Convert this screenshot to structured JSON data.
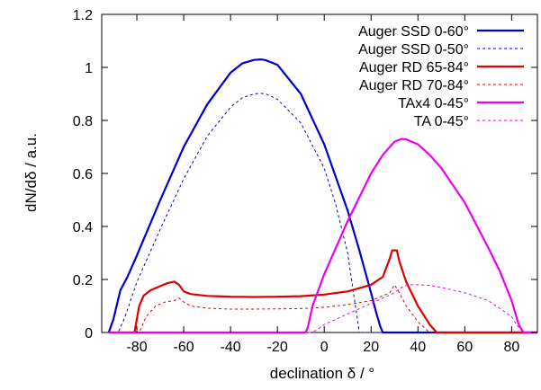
{
  "chart_data": {
    "type": "line",
    "xlabel": "declination δ / °",
    "ylabel": "dN/dδ / a.u.",
    "xlim": [
      -95,
      91
    ],
    "ylim": [
      0,
      1.2
    ],
    "xticks": [
      -80,
      -60,
      -40,
      -20,
      0,
      20,
      40,
      60,
      80
    ],
    "yticks": [
      0,
      0.2,
      0.4,
      0.6,
      0.8,
      1,
      1.2
    ],
    "grid": false,
    "legend_position": "top-right",
    "series": [
      {
        "name": "Auger SSD 0-60°",
        "color": "#0000cc",
        "style": "solid",
        "x": [
          -92,
          -90,
          -87,
          -84,
          -80,
          -70,
          -60,
          -50,
          -40,
          -35,
          -30,
          -27,
          -25,
          -20,
          -10,
          0,
          10,
          15,
          20,
          22,
          24,
          25,
          27,
          91
        ],
        "y": [
          0,
          0.05,
          0.16,
          0.21,
          0.29,
          0.5,
          0.7,
          0.86,
          0.98,
          1.015,
          1.028,
          1.03,
          1.027,
          1.01,
          0.9,
          0.71,
          0.46,
          0.31,
          0.15,
          0.08,
          0.02,
          0,
          0,
          0
        ]
      },
      {
        "name": "Auger SSD 0-50°",
        "color": "#0000cc",
        "style": "dashed",
        "x": [
          -92,
          -88,
          -85,
          -80,
          -70,
          -60,
          -50,
          -40,
          -35,
          -30,
          -27,
          -25,
          -20,
          -10,
          0,
          5,
          10,
          13,
          15,
          91
        ],
        "y": [
          0,
          0,
          0.06,
          0.19,
          0.39,
          0.58,
          0.74,
          0.85,
          0.885,
          0.9,
          0.902,
          0.9,
          0.88,
          0.79,
          0.62,
          0.48,
          0.3,
          0.12,
          0,
          0
        ]
      },
      {
        "name": "Auger RD 65-84°",
        "color": "#e00000",
        "style": "solid",
        "x": [
          -92,
          -81,
          -79,
          -77,
          -74,
          -70,
          -67,
          -64,
          -62,
          -60,
          -57,
          -50,
          -40,
          -30,
          -20,
          -10,
          0,
          10,
          20,
          25,
          28,
          29,
          31,
          32,
          35,
          40,
          45,
          48,
          91
        ],
        "y": [
          0,
          0,
          0.1,
          0.14,
          0.16,
          0.175,
          0.186,
          0.192,
          0.18,
          0.155,
          0.145,
          0.138,
          0.135,
          0.134,
          0.135,
          0.137,
          0.143,
          0.155,
          0.18,
          0.21,
          0.28,
          0.31,
          0.31,
          0.27,
          0.19,
          0.1,
          0.03,
          0,
          0
        ]
      },
      {
        "name": "Auger RD 70-84°",
        "color": "#e00000",
        "style": "dashed",
        "x": [
          -92,
          -79,
          -76,
          -72,
          -68,
          -64,
          -62,
          -60,
          -57,
          -50,
          -40,
          -30,
          -20,
          -10,
          0,
          10,
          20,
          28,
          30,
          32,
          35,
          40,
          45,
          91
        ],
        "y": [
          0,
          0,
          0.06,
          0.1,
          0.115,
          0.12,
          0.13,
          0.115,
          0.1,
          0.092,
          0.088,
          0.088,
          0.089,
          0.09,
          0.095,
          0.105,
          0.12,
          0.15,
          0.18,
          0.15,
          0.1,
          0.04,
          0,
          0
        ]
      },
      {
        "name": "TAx4 0-45°",
        "color": "#ee00ee",
        "style": "solid",
        "x": [
          -92,
          -8,
          -7,
          -5,
          0,
          10,
          20,
          25,
          30,
          33,
          35,
          40,
          45,
          50,
          60,
          70,
          75,
          80,
          83,
          85,
          91
        ],
        "y": [
          0,
          0,
          0.02,
          0.1,
          0.22,
          0.42,
          0.6,
          0.67,
          0.72,
          0.73,
          0.728,
          0.71,
          0.67,
          0.62,
          0.49,
          0.32,
          0.23,
          0.12,
          0.03,
          0,
          0
        ]
      },
      {
        "name": "TA 0-45°",
        "color": "#ee00ee",
        "style": "dashed",
        "x": [
          -92,
          -6,
          -3,
          0,
          10,
          20,
          30,
          33,
          36,
          40,
          45,
          50,
          60,
          70,
          75,
          80,
          82,
          84,
          85,
          91
        ],
        "y": [
          0,
          0,
          0.01,
          0.03,
          0.07,
          0.11,
          0.15,
          0.17,
          0.18,
          0.18,
          0.178,
          0.17,
          0.15,
          0.12,
          0.09,
          0.06,
          0.03,
          0.01,
          0,
          0
        ]
      }
    ]
  }
}
